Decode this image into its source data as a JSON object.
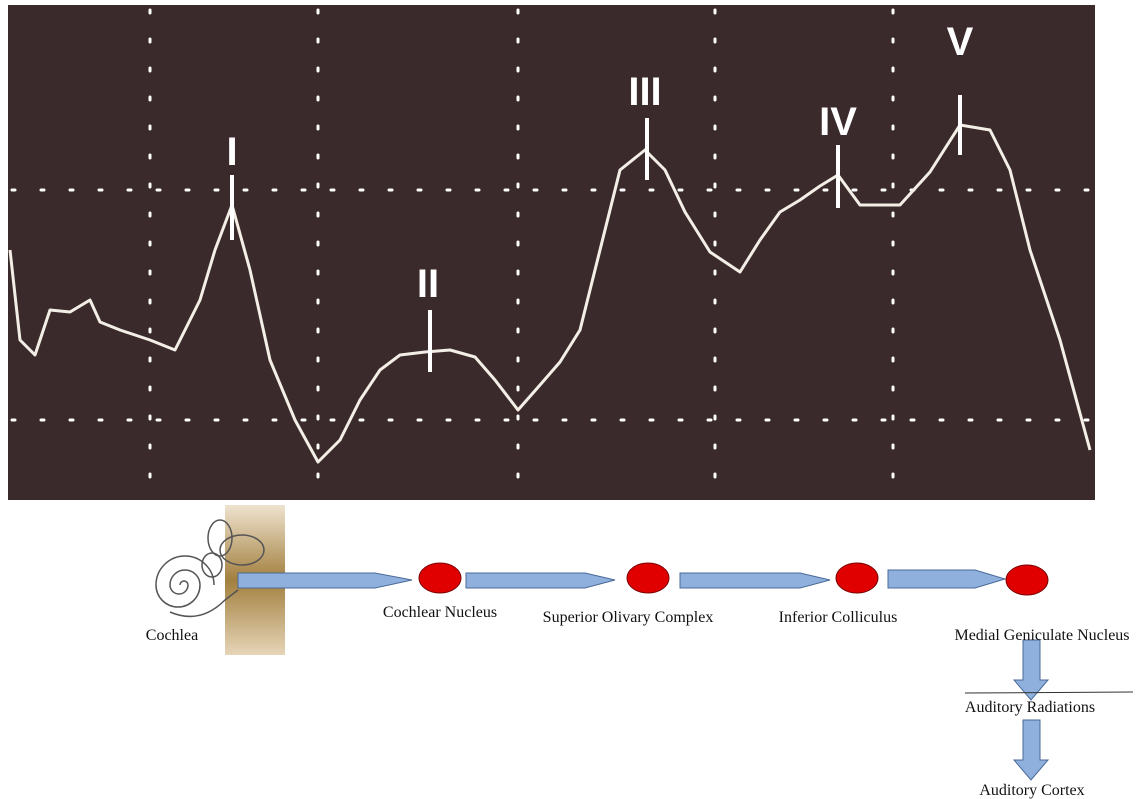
{
  "peaks": [
    {
      "label": "I"
    },
    {
      "label": "II"
    },
    {
      "label": "III"
    },
    {
      "label": "IV"
    },
    {
      "label": "V"
    }
  ],
  "pathway": {
    "start": "Cochlea",
    "nodes": [
      {
        "label": "Cochlear Nucleus"
      },
      {
        "label": "Superior Olivary Complex"
      },
      {
        "label": "Inferior Colliculus"
      },
      {
        "label": "Medial Geniculate Nucleus"
      },
      {
        "label": "Auditory Radiations"
      },
      {
        "label": "Auditory Cortex"
      }
    ]
  }
}
